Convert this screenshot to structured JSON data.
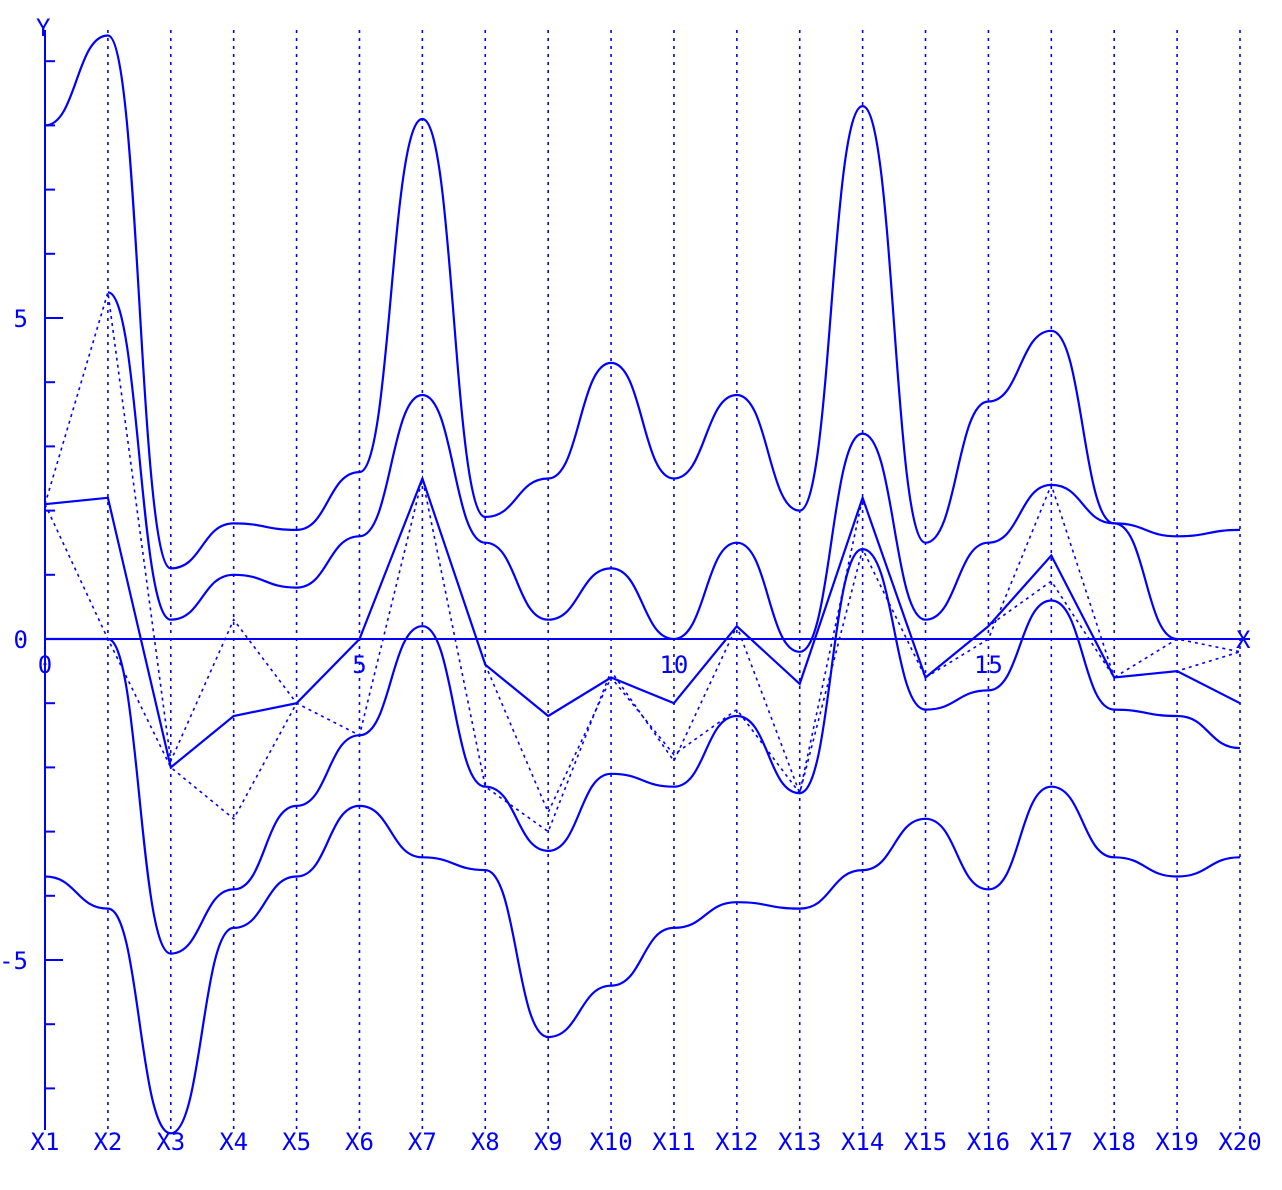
{
  "chart_data": {
    "type": "line",
    "xlabel": "X",
    "ylabel": "Y",
    "xlim": [
      0,
      19
    ],
    "ylim": [
      -7.8,
      9.8
    ],
    "x_ticks": [
      {
        "value": 0,
        "label": "0"
      },
      {
        "value": 5,
        "label": "5"
      },
      {
        "value": 10,
        "label": "10"
      },
      {
        "value": 15,
        "label": "15"
      }
    ],
    "y_ticks": [
      {
        "value": 5,
        "label": "5"
      },
      {
        "value": 0,
        "label": "0"
      },
      {
        "value": -5,
        "label": "-5"
      }
    ],
    "y_minor_ticks": [
      -7,
      -6,
      -5,
      -4,
      -3,
      -2,
      -1,
      1,
      2,
      3,
      4,
      6,
      7,
      8,
      9
    ],
    "x_ticks_lower_labels": [
      "X1",
      "X2",
      "X3",
      "X4",
      "X5",
      "X6",
      "X7",
      "X8",
      "X9",
      "X10",
      "X11",
      "X12",
      "X13",
      "X14",
      "X15",
      "X16",
      "X17",
      "X18",
      "X19",
      "X20"
    ],
    "color": "#0000ff",
    "series_solid": [
      {
        "x": [
          0,
          1,
          2,
          3,
          4,
          5,
          6,
          7,
          8,
          9,
          10,
          11,
          12,
          13,
          14,
          15,
          16,
          17,
          18,
          19
        ],
        "y": [
          2.1,
          2.2,
          -2.0,
          -1.2,
          -1.0,
          0.0,
          2.5,
          -0.4,
          -1.2,
          -0.6,
          -1.0,
          0.2,
          -0.7,
          2.2,
          -0.6,
          0.2,
          1.3,
          -0.6,
          -0.5,
          -1.0
        ]
      },
      {
        "x": [
          0,
          1,
          2,
          3,
          4,
          5,
          6,
          7,
          8,
          9,
          10,
          11,
          12,
          13,
          14,
          15,
          16,
          17,
          18,
          19
        ],
        "y": [
          8.0,
          9.4,
          1.1,
          1.8,
          1.7,
          2.6,
          8.1,
          1.9,
          2.5,
          4.3,
          2.5,
          3.8,
          2.0,
          8.3,
          1.5,
          3.7,
          4.8,
          1.8,
          1.6,
          1.7
        ]
      },
      {
        "x": [
          0,
          1,
          2,
          3,
          4,
          5,
          6,
          7,
          8,
          9,
          10,
          11,
          12,
          13,
          14,
          15,
          16,
          17,
          18,
          19
        ],
        "y": [
          -3.7,
          -4.2,
          -7.7,
          -4.5,
          -3.7,
          -2.6,
          -3.4,
          -3.6,
          -6.2,
          -5.4,
          -4.5,
          -4.1,
          -4.2,
          -3.6,
          -2.8,
          -3.9,
          -2.3,
          -3.4,
          -3.7,
          -3.4
        ]
      },
      {
        "x": [
          0,
          1,
          2,
          3,
          4,
          5,
          6,
          7,
          8,
          9,
          10,
          11,
          12,
          13,
          14,
          15,
          16,
          17,
          18,
          19
        ],
        "y": [
          0.0,
          0.0,
          -4.9,
          -3.9,
          -2.6,
          -1.5,
          0.2,
          -2.3,
          -3.3,
          -2.1,
          -2.3,
          -1.2,
          -2.4,
          1.4,
          -1.1,
          -0.8,
          0.6,
          -1.1,
          -1.2,
          -1.7
        ]
      },
      {
        "x": [
          1,
          2,
          3,
          4,
          5,
          6,
          7,
          8,
          9,
          10,
          11,
          12,
          13,
          14,
          15,
          16,
          17,
          18
        ],
        "y": [
          5.4,
          0.3,
          1.0,
          0.8,
          1.6,
          3.8,
          1.5,
          0.3,
          1.1,
          0.0,
          1.5,
          -0.2,
          3.2,
          0.3,
          1.5,
          2.4,
          1.8,
          0.0
        ]
      }
    ],
    "series_dotted": [
      {
        "x": [
          0,
          1,
          2,
          3,
          4,
          5,
          6,
          7,
          8,
          9,
          10,
          11,
          12,
          13,
          14,
          15,
          16,
          17,
          18,
          19
        ],
        "y": [
          2.1,
          5.4,
          -1.9,
          0.3,
          -1.0,
          0.0,
          2.5,
          -2.3,
          -3.0,
          -0.5,
          -1.9,
          0.2,
          -2.4,
          2.2,
          -0.6,
          0.0,
          2.4,
          -0.6,
          -0.5,
          -0.2
        ]
      },
      {
        "x": [
          0,
          1,
          2,
          3,
          4,
          5,
          6,
          7,
          8,
          9,
          10,
          11,
          12,
          13,
          14,
          15,
          16,
          17,
          18,
          19
        ],
        "y": [
          2.1,
          0.0,
          -2.0,
          -2.8,
          -1.0,
          -1.5,
          2.5,
          -0.4,
          -2.7,
          -0.6,
          -1.8,
          -1.1,
          -2.4,
          1.4,
          -0.6,
          0.2,
          0.9,
          -0.6,
          0.0,
          -0.2
        ]
      }
    ]
  }
}
